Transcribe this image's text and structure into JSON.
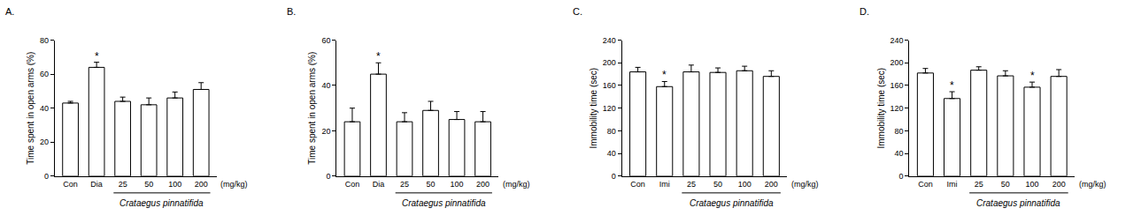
{
  "chart_data": [
    {
      "type": "bar",
      "title": "A.",
      "y_label": "Time spent in open arms (%)",
      "categories": [
        "Con",
        "Dia",
        "25",
        "50",
        "100",
        "200"
      ],
      "values": [
        43,
        64,
        44,
        42,
        46,
        51
      ],
      "errors": [
        1,
        3,
        2.5,
        4,
        3.5,
        4
      ],
      "color": "#ffffff",
      "ylim": [
        0,
        80
      ],
      "yticks": [
        0,
        20,
        40,
        60,
        80
      ],
      "annotations": [
        {
          "text": "*",
          "at": "Dia"
        }
      ],
      "x_label": {
        "text": "Crataegus pinnatifida",
        "span": [
          "25",
          "200"
        ]
      },
      "unit": "(mg/kg)"
    },
    {
      "type": "bar",
      "title": "B.",
      "y_label": "Time spent in open arms (%)",
      "categories": [
        "Con",
        "Dia",
        "25",
        "50",
        "100",
        "200"
      ],
      "values": [
        24,
        45,
        24,
        29,
        25,
        24
      ],
      "errors": [
        6,
        5,
        4,
        4,
        3.5,
        4.5
      ],
      "color": "#ffffff",
      "ylim": [
        0,
        60
      ],
      "yticks": [
        0,
        20,
        40,
        60
      ],
      "annotations": [
        {
          "text": "*",
          "at": "Dia"
        }
      ],
      "x_label": {
        "text": "Crataegus pinnatifida",
        "span": [
          "25",
          "200"
        ]
      },
      "unit": "(mg/kg)"
    },
    {
      "type": "bar",
      "title": "C.",
      "y_label": "Immobility time (sec)",
      "categories": [
        "Con",
        "Imi",
        "25",
        "50",
        "100",
        "200"
      ],
      "values": [
        184,
        158,
        184,
        183,
        186,
        176
      ],
      "errors": [
        8,
        9,
        12,
        8,
        8,
        10
      ],
      "color": "#ffffff",
      "ylim": [
        0,
        240
      ],
      "yticks": [
        0,
        40,
        80,
        120,
        160,
        200,
        240
      ],
      "annotations": [
        {
          "text": "*",
          "at": "Imi"
        }
      ],
      "x_label": {
        "text": "Crataegus pinnatifida",
        "span": [
          "25",
          "200"
        ]
      },
      "unit": "(mg/kg)"
    },
    {
      "type": "bar",
      "title": "D.",
      "y_label": "Immobility time (sec)",
      "categories": [
        "Con",
        "Imi",
        "25",
        "50",
        "100",
        "200"
      ],
      "values": [
        182,
        137,
        187,
        177,
        157,
        176
      ],
      "errors": [
        8,
        12,
        6,
        9,
        9,
        12
      ],
      "color": "#ffffff",
      "ylim": [
        0,
        240
      ],
      "yticks": [
        0,
        40,
        80,
        120,
        160,
        200,
        240
      ],
      "annotations": [
        {
          "text": "*",
          "at": "Imi"
        },
        {
          "text": "*",
          "at": "100"
        }
      ],
      "x_label": {
        "text": "Crataegus pinnatifida",
        "span": [
          "25",
          "200"
        ]
      },
      "unit": "(mg/kg)"
    }
  ]
}
